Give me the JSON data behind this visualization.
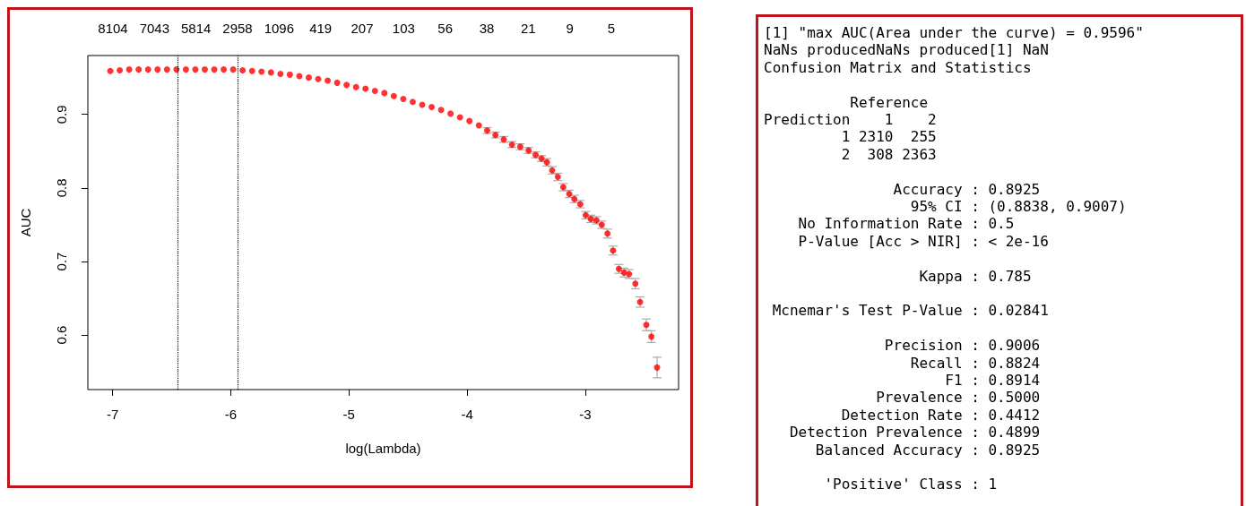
{
  "chart_data": [
    {
      "type": "scatter",
      "xlabel": "log(Lambda)",
      "ylabel": "AUC",
      "marker": "circle",
      "grid": false,
      "annotations": [
        "8104",
        "7043",
        "5814",
        "2958",
        "1096",
        "419",
        "207",
        "103",
        "56",
        "38",
        "21",
        "9",
        "5"
      ],
      "xlim": [
        -7.21,
        -2.21
      ],
      "xticks": [
        -7,
        -6,
        -5,
        -4,
        -3
      ],
      "ylim": [
        0.526,
        0.98
      ],
      "yticks": [
        0.6,
        0.7,
        0.8,
        0.9
      ],
      "ref_lines": [
        {
          "axis": "x",
          "value": -6.446,
          "color": "#000000",
          "line_style": "dotted"
        },
        {
          "axis": "x",
          "value": -5.937,
          "color": "#000000",
          "line_style": "dotted"
        }
      ],
      "series": [
        {
          "color": "#ff0000",
          "x": [
            -7.02,
            -6.94,
            -6.86,
            -6.78,
            -6.7,
            -6.62,
            -6.54,
            -6.46,
            -6.38,
            -6.3,
            -6.22,
            -6.14,
            -6.06,
            -5.98,
            -5.9,
            -5.82,
            -5.74,
            -5.66,
            -5.58,
            -5.5,
            -5.42,
            -5.34,
            -5.26,
            -5.18,
            -5.1,
            -5.02,
            -4.94,
            -4.86,
            -4.78,
            -4.7,
            -4.62,
            -4.54,
            -4.46,
            -4.38,
            -4.3,
            -4.22,
            -4.14,
            -4.06,
            -3.98,
            -3.9,
            -3.83,
            -3.76,
            -3.69,
            -3.62,
            -3.55,
            -3.48,
            -3.42,
            -3.37,
            -3.325,
            -3.28,
            -3.232,
            -3.186,
            -3.135,
            -3.092,
            -3.042,
            -2.996,
            -2.953,
            -2.905,
            -2.86,
            -2.812,
            -2.765,
            -2.715,
            -2.672,
            -2.629,
            -2.576,
            -2.536,
            -2.483,
            -2.44,
            -2.392
          ],
          "values": [
            0.959,
            0.96,
            0.961,
            0.961,
            0.961,
            0.961,
            0.961,
            0.961,
            0.961,
            0.961,
            0.961,
            0.961,
            0.961,
            0.961,
            0.96,
            0.959,
            0.958,
            0.957,
            0.955,
            0.954,
            0.952,
            0.95,
            0.948,
            0.946,
            0.943,
            0.94,
            0.937,
            0.935,
            0.932,
            0.929,
            0.925,
            0.921,
            0.917,
            0.913,
            0.91,
            0.906,
            0.901,
            0.896,
            0.891,
            0.885,
            0.878,
            0.872,
            0.866,
            0.859,
            0.856,
            0.851,
            0.845,
            0.84,
            0.835,
            0.824,
            0.815,
            0.801,
            0.792,
            0.785,
            0.778,
            0.763,
            0.758,
            0.756,
            0.75,
            0.738,
            0.715,
            0.69,
            0.685,
            0.683,
            0.67,
            0.645,
            0.614,
            0.598,
            0.556
          ],
          "errors": [
            null,
            null,
            null,
            null,
            null,
            null,
            null,
            null,
            null,
            null,
            null,
            null,
            null,
            null,
            null,
            null,
            null,
            null,
            null,
            null,
            null,
            null,
            null,
            null,
            null,
            null,
            null,
            null,
            null,
            null,
            null,
            null,
            null,
            null,
            null,
            null,
            null,
            null,
            null,
            null,
            0.004,
            0.004,
            0.004,
            0.004,
            0.004,
            0.004,
            0.004,
            0.004,
            0.005,
            0.005,
            0.005,
            0.005,
            0.005,
            0.005,
            0.005,
            0.005,
            0.005,
            0.005,
            0.005,
            0.006,
            0.006,
            0.006,
            0.006,
            0.006,
            0.007,
            0.007,
            0.008,
            0.008,
            0.014
          ]
        }
      ]
    },
    {
      "type": "other",
      "annotations": [
        "[1] \"max AUC(Area under the curve) = 0.9596\"\nNaNs producedNaNs produced[1] NaN\nConfusion Matrix and Statistics",
        "          Reference\nPrediction    1    2\n         1 2310  255\n         2  308 2363",
        "               Accuracy : 0.8925\n                 95% CI : (0.8838, 0.9007)\n    No Information Rate : 0.5\n    P-Value [Acc > NIR] : < 2e-16",
        "                  Kappa : 0.785",
        " Mcnemar's Test P-Value : 0.02841",
        "              Precision : 0.9006\n                 Recall : 0.8824\n                     F1 : 0.8914\n             Prevalence : 0.5000\n         Detection Rate : 0.4412\n   Detection Prevalence : 0.4899\n      Balanced Accuracy : 0.8925",
        "       'Positive' Class : 1"
      ]
    }
  ]
}
